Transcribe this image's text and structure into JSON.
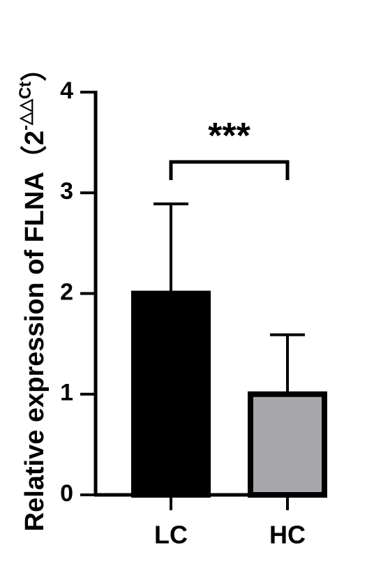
{
  "chart_data": {
    "type": "bar",
    "y_label": {
      "text": "Relative expression of FLNA（2",
      "superscript": "-△△Ct",
      "suffix": "）"
    },
    "categories": [
      "LC",
      "HC"
    ],
    "series": [
      {
        "values": [
          2.0,
          1.0
        ],
        "errors": [
          0.89,
          0.59
        ],
        "colors": [
          "#000000",
          "#a7a6ab"
        ]
      }
    ],
    "ylim": [
      0,
      4
    ],
    "yticks": [
      0,
      1,
      2,
      3,
      4
    ],
    "annotations": [
      {
        "text": "***",
        "between": [
          0,
          1
        ]
      }
    ]
  }
}
